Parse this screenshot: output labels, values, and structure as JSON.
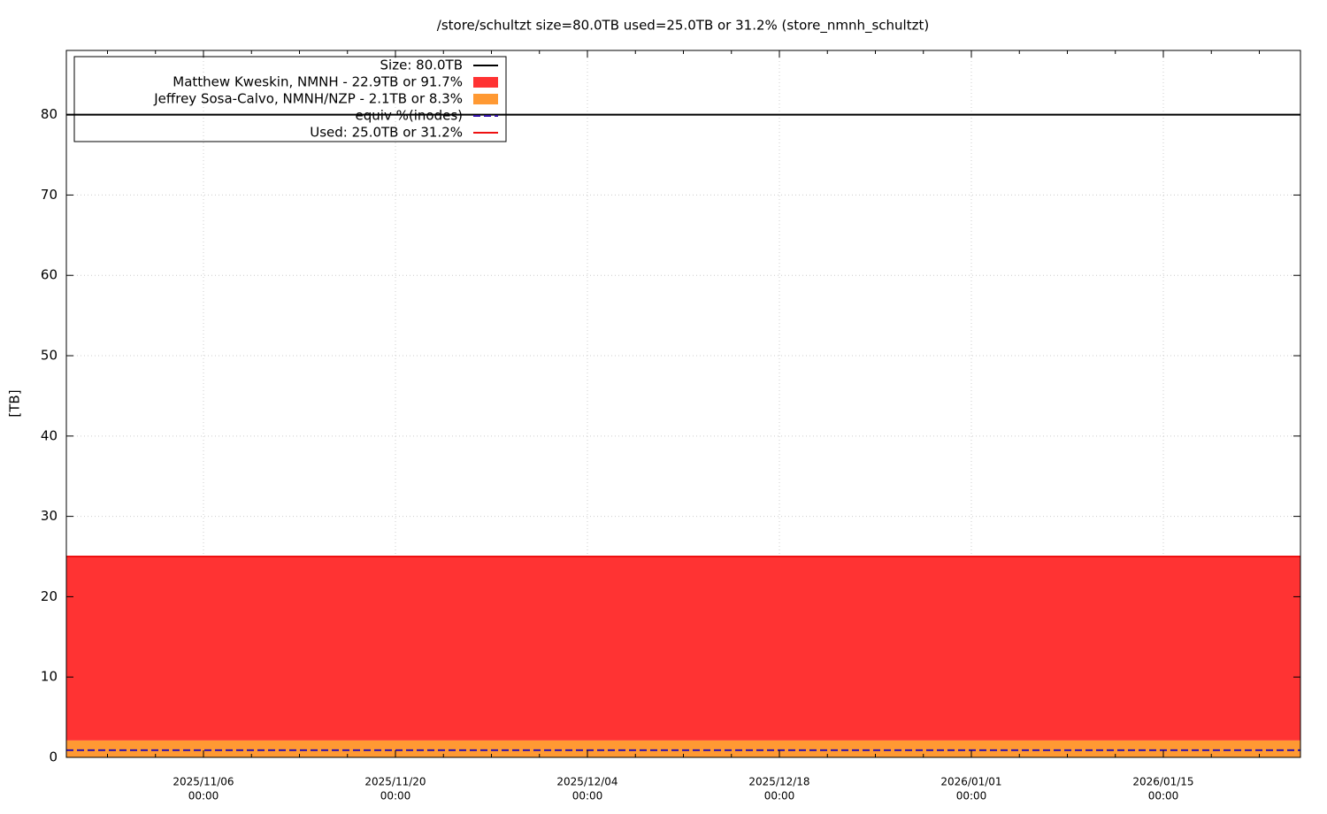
{
  "chart_data": {
    "type": "area",
    "title": "/store/schultzt size=80.0TB used=25.0TB or 31.2% (store_nmnh_schultzt)",
    "y_label": "[TB]",
    "x": [
      "2025-10-27",
      "2026-01-25"
    ],
    "xlim": [
      "2025-10-27",
      "2026-01-25"
    ],
    "xticks": [
      {
        "value": "2025-11-06",
        "label": [
          "2025/11/06",
          "00:00"
        ]
      },
      {
        "value": "2025-11-20",
        "label": [
          "2025/11/20",
          "00:00"
        ]
      },
      {
        "value": "2025-12-04",
        "label": [
          "2025/12/04",
          "00:00"
        ]
      },
      {
        "value": "2025-12-18",
        "label": [
          "2025/12/18",
          "00:00"
        ]
      },
      {
        "value": "2026-01-01",
        "label": [
          "2026/01/01",
          "00:00"
        ]
      },
      {
        "value": "2026-01-15",
        "label": [
          "2026/01/15",
          "00:00"
        ]
      }
    ],
    "ylim": [
      0,
      88
    ],
    "yticks": [
      0,
      10,
      20,
      30,
      40,
      50,
      60,
      70,
      80
    ],
    "grid": true,
    "legend": "upper left",
    "series": [
      {
        "name": "Size: 80.0TB",
        "kind": "line",
        "color": "#000000",
        "values": [
          80,
          80
        ]
      },
      {
        "name": "Matthew Kweskin, NMNH - 22.9TB or 91.7%",
        "kind": "stacked-area",
        "color": "#ff3333",
        "values": [
          22.9,
          22.9
        ]
      },
      {
        "name": "Jeffrey Sosa-Calvo, NMNH/NZP - 2.1TB or 8.3%",
        "kind": "stacked-area",
        "color": "#ff9933",
        "values": [
          2.1,
          2.1
        ]
      },
      {
        "name": "equiv %(inodes)",
        "kind": "dashed-line",
        "color": "#3311aa",
        "values": [
          0.9,
          0.9
        ]
      },
      {
        "name": "Used: 25.0TB or 31.2%",
        "kind": "line",
        "color": "#ee1111",
        "values": [
          25.0,
          25.0
        ]
      }
    ]
  }
}
